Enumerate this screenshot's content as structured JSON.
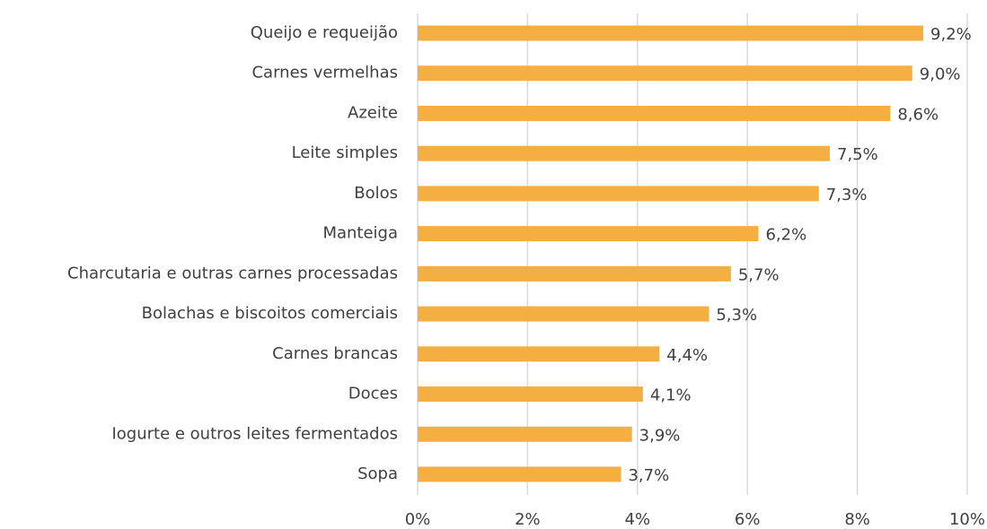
{
  "chart_data": {
    "type": "bar",
    "orientation": "horizontal",
    "categories": [
      "Queijo e requeijão",
      "Carnes vermelhas",
      "Azeite",
      "Leite simples",
      "Bolos",
      "Manteiga",
      "Charcutaria e outras carnes processadas",
      "Bolachas e biscoitos comerciais",
      "Carnes brancas",
      "Doces",
      "Iogurte e outros leites fermentados",
      "Sopa"
    ],
    "values": [
      9.2,
      9.0,
      8.6,
      7.5,
      7.3,
      6.2,
      5.7,
      5.3,
      4.4,
      4.1,
      3.9,
      3.7
    ],
    "value_labels": [
      "9,2%",
      "9,0%",
      "8,6%",
      "7,5%",
      "7,3%",
      "6,2%",
      "5,7%",
      "5,3%",
      "4,4%",
      "4,1%",
      "3,9%",
      "3,7%"
    ],
    "color": "#f4ae42",
    "xlim": [
      0,
      10
    ],
    "xticks": [
      {
        "value": 0,
        "label": "0%"
      },
      {
        "value": 2,
        "label": "2%"
      },
      {
        "value": 4,
        "label": "4%"
      },
      {
        "value": 6,
        "label": "6%"
      },
      {
        "value": 8,
        "label": "8%"
      },
      {
        "value": 10,
        "label": "10%"
      }
    ],
    "grid": true
  }
}
